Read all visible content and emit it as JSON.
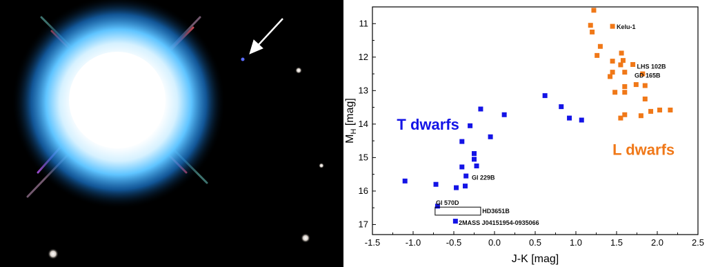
{
  "photo": {
    "background": "#000000",
    "glow_color": "#2aa6ff",
    "arrow_color": "#ffffff"
  },
  "chart_data": {
    "type": "scatter",
    "xlabel": "J-K [mag]",
    "ylabel_main": "M",
    "ylabel_sub": "H",
    "ylabel_unit": " [mag]",
    "xlim": [
      -1.5,
      2.5
    ],
    "ylim": [
      17.3,
      10.5
    ],
    "y_inverted": true,
    "x_ticks": [
      "-1.5",
      "-1.0",
      "-0.5",
      "0.0",
      "0.5",
      "1.0",
      "1.5",
      "2.0",
      "2.5"
    ],
    "y_ticks": [
      "11",
      "12",
      "13",
      "14",
      "15",
      "16",
      "17"
    ],
    "grid": false,
    "series": [
      {
        "name": "T dwarfs",
        "color": "#1414e6",
        "marker": "square",
        "points": [
          [
            -1.1,
            15.7
          ],
          [
            -0.72,
            15.8
          ],
          [
            -0.47,
            15.9
          ],
          [
            -0.36,
            15.85
          ],
          [
            -0.35,
            15.55
          ],
          [
            -0.4,
            15.28
          ],
          [
            -0.22,
            15.25
          ],
          [
            -0.25,
            15.05
          ],
          [
            -0.25,
            14.88
          ],
          [
            -0.4,
            14.52
          ],
          [
            -0.05,
            14.38
          ],
          [
            -0.3,
            14.05
          ],
          [
            -0.17,
            13.55
          ],
          [
            0.12,
            13.72
          ],
          [
            0.62,
            13.15
          ],
          [
            0.82,
            13.48
          ],
          [
            0.92,
            13.82
          ],
          [
            1.07,
            13.88
          ],
          [
            -0.7,
            16.45
          ],
          [
            -0.48,
            16.9
          ]
        ]
      },
      {
        "name": "L dwarfs",
        "color": "#f07818",
        "marker": "square",
        "points": [
          [
            1.22,
            10.6
          ],
          [
            1.18,
            11.05
          ],
          [
            1.2,
            11.25
          ],
          [
            1.45,
            11.08
          ],
          [
            1.3,
            11.68
          ],
          [
            1.26,
            11.95
          ],
          [
            1.56,
            11.88
          ],
          [
            1.58,
            12.1
          ],
          [
            1.55,
            12.23
          ],
          [
            1.45,
            12.12
          ],
          [
            1.7,
            12.22
          ],
          [
            1.45,
            12.45
          ],
          [
            1.42,
            12.58
          ],
          [
            1.6,
            12.45
          ],
          [
            1.82,
            12.5
          ],
          [
            1.48,
            13.05
          ],
          [
            1.6,
            12.88
          ],
          [
            1.74,
            12.82
          ],
          [
            1.85,
            12.85
          ],
          [
            1.6,
            13.05
          ],
          [
            1.85,
            13.25
          ],
          [
            1.92,
            13.62
          ],
          [
            2.03,
            13.58
          ],
          [
            2.16,
            13.58
          ],
          [
            1.6,
            13.72
          ],
          [
            1.55,
            13.82
          ],
          [
            1.8,
            13.75
          ]
        ]
      }
    ],
    "annotations": [
      {
        "text": "Kelu-1",
        "x": 1.5,
        "y": 11.1
      },
      {
        "text": "LHS 102B",
        "x": 1.75,
        "y": 12.28
      },
      {
        "text": "GD 165B",
        "x": 1.72,
        "y": 12.55
      },
      {
        "text": "Gl 229B",
        "x": -0.28,
        "y": 15.6
      },
      {
        "text": "Gl 570D",
        "x": -0.72,
        "y": 16.35
      },
      {
        "text": "HD3651B",
        "x": -0.15,
        "y": 16.6
      },
      {
        "text": "2MASS J04151954-0935066",
        "x": -0.44,
        "y": 16.95
      }
    ],
    "group_labels": [
      {
        "text": "T dwarfs",
        "x": -1.2,
        "y": 14.0,
        "color": "#1414e6"
      },
      {
        "text": "L dwarfs",
        "x": 1.45,
        "y": 14.75,
        "color": "#f07818"
      }
    ],
    "highlight_box": {
      "x0": -0.73,
      "x1": -0.17,
      "y0": 16.48,
      "y1": 16.72
    }
  }
}
